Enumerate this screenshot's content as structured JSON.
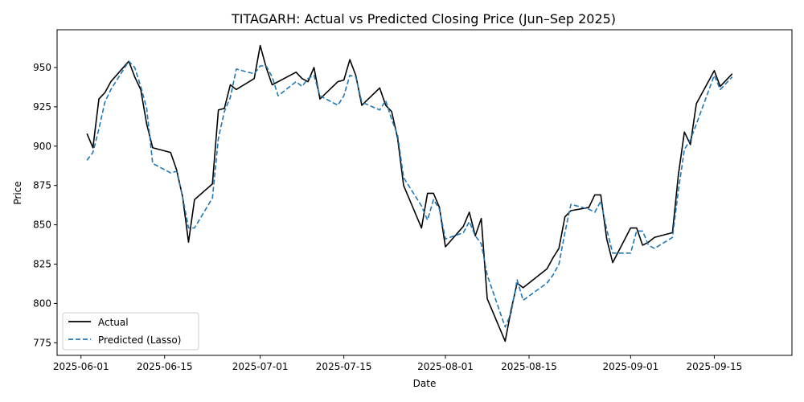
{
  "chart_data": {
    "type": "line",
    "title": "TITAGARH: Actual vs Predicted Closing Price (Jun–Sep 2025)",
    "xlabel": "Date",
    "ylabel": "Price",
    "xlim": [
      "2025-05-28",
      "2025-09-28"
    ],
    "ylim": [
      767,
      974
    ],
    "x_ticks": [
      "2025-06-01",
      "2025-06-15",
      "2025-07-01",
      "2025-07-15",
      "2025-08-01",
      "2025-08-15",
      "2025-09-01",
      "2025-09-15"
    ],
    "y_ticks": [
      775,
      800,
      825,
      850,
      875,
      900,
      925,
      950
    ],
    "grid": false,
    "legend": {
      "position": "lower-left"
    },
    "series": [
      {
        "name": "Actual",
        "color": "#000000",
        "style": "solid",
        "points": [
          [
            "2025-06-02",
            908
          ],
          [
            "2025-06-03",
            899
          ],
          [
            "2025-06-04",
            930
          ],
          [
            "2025-06-05",
            934
          ],
          [
            "2025-06-06",
            941
          ],
          [
            "2025-06-09",
            954
          ],
          [
            "2025-06-10",
            944
          ],
          [
            "2025-06-11",
            936
          ],
          [
            "2025-06-12",
            914
          ],
          [
            "2025-06-13",
            899
          ],
          [
            "2025-06-16",
            896
          ],
          [
            "2025-06-17",
            885
          ],
          [
            "2025-06-18",
            868
          ],
          [
            "2025-06-19",
            839
          ],
          [
            "2025-06-20",
            866
          ],
          [
            "2025-06-23",
            876
          ],
          [
            "2025-06-24",
            923
          ],
          [
            "2025-06-25",
            924
          ],
          [
            "2025-06-26",
            939
          ],
          [
            "2025-06-27",
            936
          ],
          [
            "2025-06-30",
            943
          ],
          [
            "2025-07-01",
            964
          ],
          [
            "2025-07-02",
            950
          ],
          [
            "2025-07-03",
            939
          ],
          [
            "2025-07-07",
            947
          ],
          [
            "2025-07-08",
            943
          ],
          [
            "2025-07-09",
            941
          ],
          [
            "2025-07-10",
            950
          ],
          [
            "2025-07-11",
            930
          ],
          [
            "2025-07-14",
            941
          ],
          [
            "2025-07-15",
            942
          ],
          [
            "2025-07-16",
            955
          ],
          [
            "2025-07-17",
            945
          ],
          [
            "2025-07-18",
            926
          ],
          [
            "2025-07-21",
            937
          ],
          [
            "2025-07-22",
            926
          ],
          [
            "2025-07-23",
            922
          ],
          [
            "2025-07-24",
            905
          ],
          [
            "2025-07-25",
            875
          ],
          [
            "2025-07-28",
            848
          ],
          [
            "2025-07-29",
            870
          ],
          [
            "2025-07-30",
            870
          ],
          [
            "2025-07-31",
            861
          ],
          [
            "2025-08-01",
            836
          ],
          [
            "2025-08-04",
            849
          ],
          [
            "2025-08-05",
            858
          ],
          [
            "2025-08-06",
            843
          ],
          [
            "2025-08-07",
            854
          ],
          [
            "2025-08-08",
            803
          ],
          [
            "2025-08-11",
            776
          ],
          [
            "2025-08-12",
            796
          ],
          [
            "2025-08-13",
            813
          ],
          [
            "2025-08-14",
            810
          ],
          [
            "2025-08-18",
            822
          ],
          [
            "2025-08-19",
            829
          ],
          [
            "2025-08-20",
            835
          ],
          [
            "2025-08-21",
            855
          ],
          [
            "2025-08-22",
            859
          ],
          [
            "2025-08-25",
            861
          ],
          [
            "2025-08-26",
            869
          ],
          [
            "2025-08-27",
            869
          ],
          [
            "2025-08-28",
            841
          ],
          [
            "2025-08-29",
            826
          ],
          [
            "2025-09-01",
            848
          ],
          [
            "2025-09-02",
            848
          ],
          [
            "2025-09-03",
            837
          ],
          [
            "2025-09-04",
            839
          ],
          [
            "2025-09-05",
            842
          ],
          [
            "2025-09-08",
            845
          ],
          [
            "2025-09-09",
            882
          ],
          [
            "2025-09-10",
            909
          ],
          [
            "2025-09-11",
            901
          ],
          [
            "2025-09-12",
            927
          ],
          [
            "2025-09-15",
            948
          ],
          [
            "2025-09-16",
            938
          ],
          [
            "2025-09-18",
            946
          ]
        ]
      },
      {
        "name": "Predicted (Lasso)",
        "color": "#1f77b4",
        "style": "dashed",
        "points": [
          [
            "2025-06-02",
            891
          ],
          [
            "2025-06-03",
            896
          ],
          [
            "2025-06-04",
            911
          ],
          [
            "2025-06-05",
            928
          ],
          [
            "2025-06-06",
            936
          ],
          [
            "2025-06-09",
            954
          ],
          [
            "2025-06-10",
            950
          ],
          [
            "2025-06-11",
            938
          ],
          [
            "2025-06-12",
            924
          ],
          [
            "2025-06-13",
            889
          ],
          [
            "2025-06-16",
            883
          ],
          [
            "2025-06-17",
            884
          ],
          [
            "2025-06-18",
            868
          ],
          [
            "2025-06-19",
            848
          ],
          [
            "2025-06-20",
            848
          ],
          [
            "2025-06-23",
            867
          ],
          [
            "2025-06-24",
            905
          ],
          [
            "2025-06-25",
            922
          ],
          [
            "2025-06-26",
            931
          ],
          [
            "2025-06-27",
            949
          ],
          [
            "2025-06-30",
            946
          ],
          [
            "2025-07-01",
            951
          ],
          [
            "2025-07-02",
            951
          ],
          [
            "2025-07-03",
            944
          ],
          [
            "2025-07-04",
            932
          ],
          [
            "2025-07-07",
            941
          ],
          [
            "2025-07-08",
            938
          ],
          [
            "2025-07-09",
            943
          ],
          [
            "2025-07-10",
            945
          ],
          [
            "2025-07-11",
            932
          ],
          [
            "2025-07-14",
            926
          ],
          [
            "2025-07-15",
            932
          ],
          [
            "2025-07-16",
            945
          ],
          [
            "2025-07-17",
            944
          ],
          [
            "2025-07-18",
            928
          ],
          [
            "2025-07-21",
            923
          ],
          [
            "2025-07-22",
            929
          ],
          [
            "2025-07-23",
            917
          ],
          [
            "2025-07-24",
            907
          ],
          [
            "2025-07-25",
            880
          ],
          [
            "2025-07-28",
            862
          ],
          [
            "2025-07-29",
            853
          ],
          [
            "2025-07-30",
            866
          ],
          [
            "2025-07-31",
            860
          ],
          [
            "2025-08-01",
            841
          ],
          [
            "2025-08-04",
            845
          ],
          [
            "2025-08-05",
            852
          ],
          [
            "2025-08-06",
            843
          ],
          [
            "2025-08-07",
            838
          ],
          [
            "2025-08-08",
            818
          ],
          [
            "2025-08-11",
            785
          ],
          [
            "2025-08-12",
            794
          ],
          [
            "2025-08-13",
            815
          ],
          [
            "2025-08-14",
            802
          ],
          [
            "2025-08-18",
            813
          ],
          [
            "2025-08-19",
            818
          ],
          [
            "2025-08-20",
            825
          ],
          [
            "2025-08-21",
            845
          ],
          [
            "2025-08-22",
            863
          ],
          [
            "2025-08-25",
            860
          ],
          [
            "2025-08-26",
            858
          ],
          [
            "2025-08-27",
            865
          ],
          [
            "2025-08-28",
            847
          ],
          [
            "2025-08-29",
            832
          ],
          [
            "2025-09-01",
            832
          ],
          [
            "2025-09-02",
            846
          ],
          [
            "2025-09-03",
            846
          ],
          [
            "2025-09-04",
            837
          ],
          [
            "2025-09-05",
            835
          ],
          [
            "2025-09-08",
            842
          ],
          [
            "2025-09-09",
            872
          ],
          [
            "2025-09-10",
            898
          ],
          [
            "2025-09-11",
            904
          ],
          [
            "2025-09-12",
            914
          ],
          [
            "2025-09-15",
            945
          ],
          [
            "2025-09-16",
            936
          ],
          [
            "2025-09-18",
            944
          ]
        ]
      }
    ]
  }
}
